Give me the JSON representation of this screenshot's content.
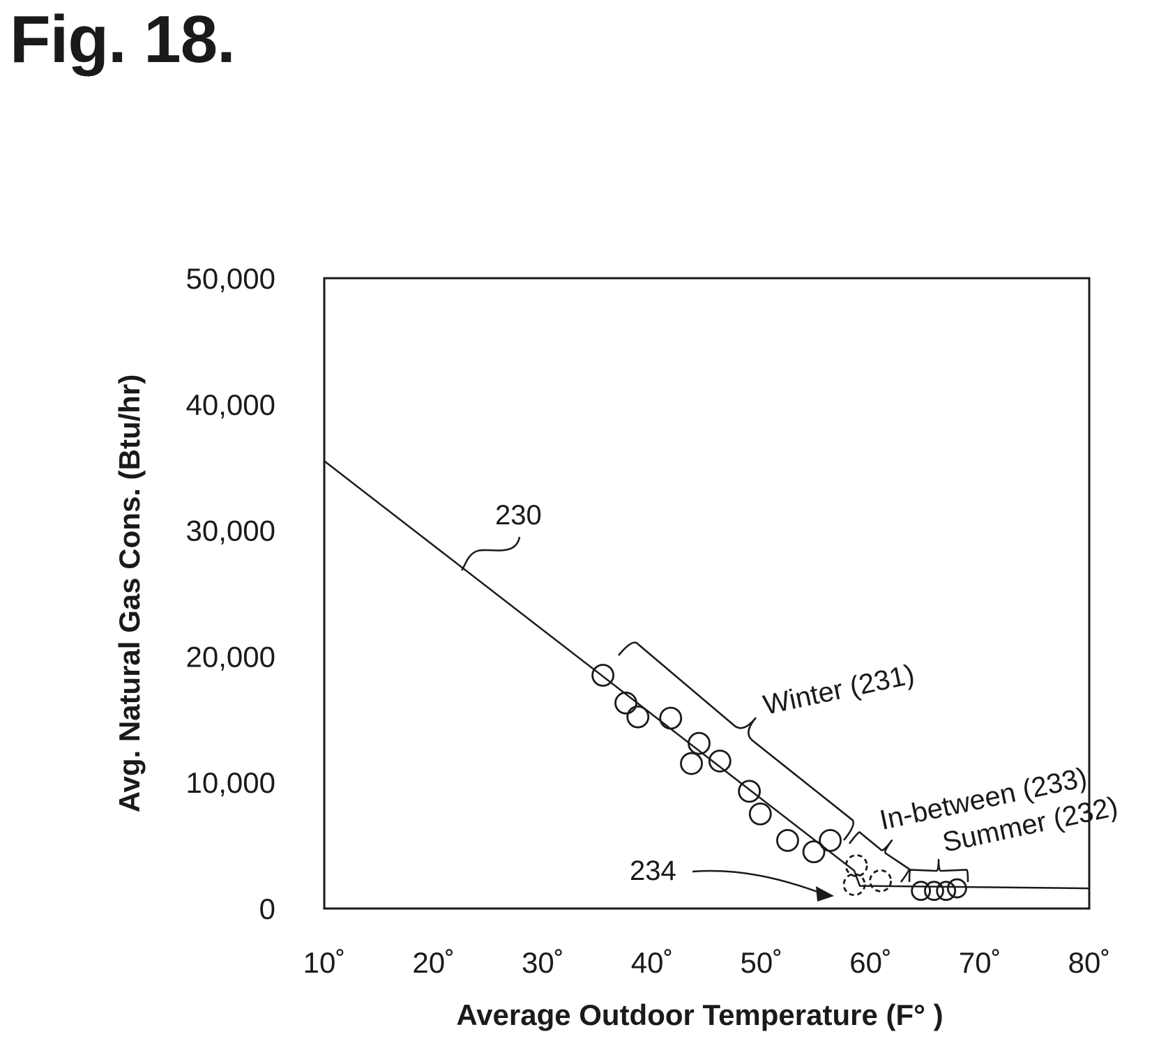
{
  "figure": {
    "title": "Fig. 18."
  },
  "chart_data": {
    "type": "scatter",
    "xlabel": "Average Outdoor Temperature (F° )",
    "ylabel": "Avg. Natural Gas Cons. (Btu/hr)",
    "xlim": [
      10,
      80
    ],
    "ylim": [
      0,
      50000
    ],
    "x_ticks": [
      10,
      20,
      30,
      40,
      50,
      60,
      70,
      80
    ],
    "x_tick_labels": [
      "10˚",
      "20˚",
      "30˚",
      "40˚",
      "50˚",
      "60˚",
      "70˚",
      "80˚"
    ],
    "y_ticks": [
      0,
      10000,
      20000,
      30000,
      40000,
      50000
    ],
    "y_tick_labels": [
      "0",
      "10,000",
      "20,000",
      "30,000",
      "40,000",
      "50,000"
    ],
    "grid": false,
    "fit_line": {
      "label": "230",
      "points": [
        [
          10,
          35500
        ],
        [
          58.5,
          3000
        ],
        [
          59,
          1800
        ],
        [
          80,
          1600
        ]
      ]
    },
    "series": [
      {
        "label": "Winter (231)",
        "style": "solid-circle",
        "points": [
          [
            35.5,
            18500
          ],
          [
            37.6,
            16300
          ],
          [
            38.7,
            15200
          ],
          [
            41.7,
            15100
          ],
          [
            44.3,
            13100
          ],
          [
            43.6,
            11500
          ],
          [
            46.2,
            11700
          ],
          [
            48.9,
            9300
          ],
          [
            49.9,
            7500
          ],
          [
            52.4,
            5400
          ],
          [
            54.8,
            4500
          ],
          [
            56.3,
            5400
          ]
        ]
      },
      {
        "label": "In-between (233)",
        "style": "dashed-circle",
        "points": [
          [
            58.7,
            3400
          ],
          [
            58.5,
            1900
          ],
          [
            60.9,
            2200
          ]
        ]
      },
      {
        "label": "Summer (232)",
        "style": "solid-circle",
        "points": [
          [
            64.6,
            1400
          ],
          [
            65.8,
            1400
          ],
          [
            66.9,
            1400
          ],
          [
            67.9,
            1600
          ]
        ]
      }
    ],
    "annotations": [
      {
        "text": "230",
        "target": "fit_line",
        "at": [
          23,
          27000
        ]
      },
      {
        "text": "Winter (231)",
        "target": "series.0"
      },
      {
        "text": "In-between (233)",
        "target": "series.1"
      },
      {
        "text": "Summer (232)",
        "target": "series.2"
      },
      {
        "text": "234",
        "target": "fit_line",
        "at": [
          58,
          1600
        ]
      }
    ],
    "colors": {
      "ink": "#1a1a1a",
      "background": "#ffffff"
    }
  }
}
